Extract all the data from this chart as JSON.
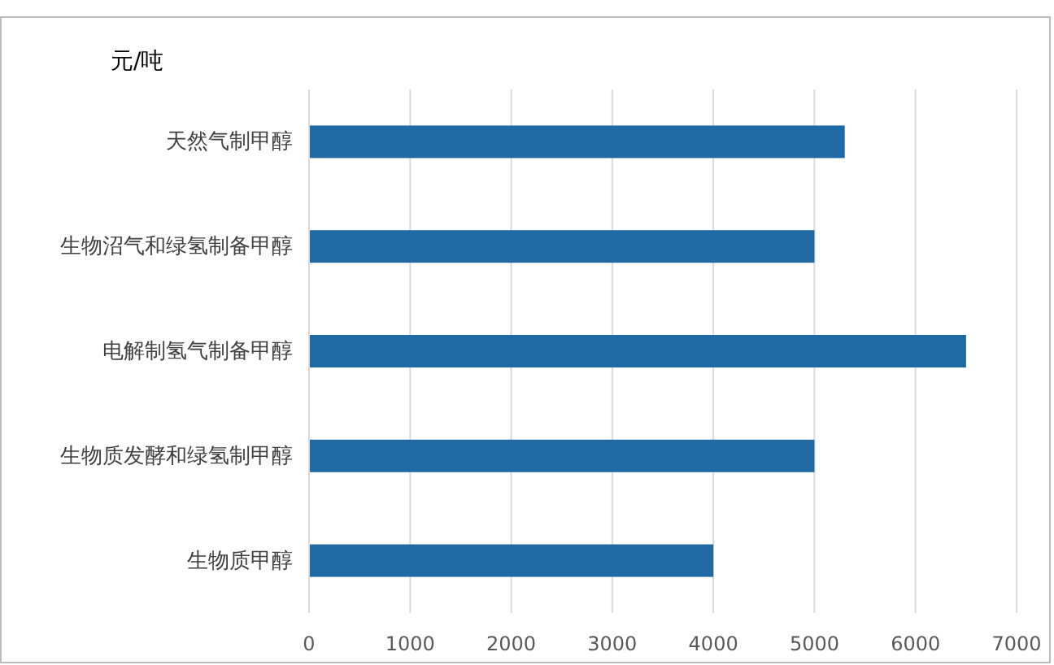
{
  "chart_data": {
    "type": "bar",
    "orientation": "horizontal",
    "xlabel": "元/吨",
    "categories": [
      "天然气制甲醇",
      "生物沼气和绿氢制备甲醇",
      "电解制氢气制备甲醇",
      "生物质发酵和绿氢制甲醇",
      "生物质甲醇"
    ],
    "values": [
      5300,
      5000,
      6500,
      5000,
      4000
    ],
    "color": "#1f6aa5",
    "xlim": [
      0,
      7000
    ],
    "xticks": [
      0,
      1000,
      2000,
      3000,
      4000,
      5000,
      6000,
      7000
    ],
    "grid": "x"
  }
}
